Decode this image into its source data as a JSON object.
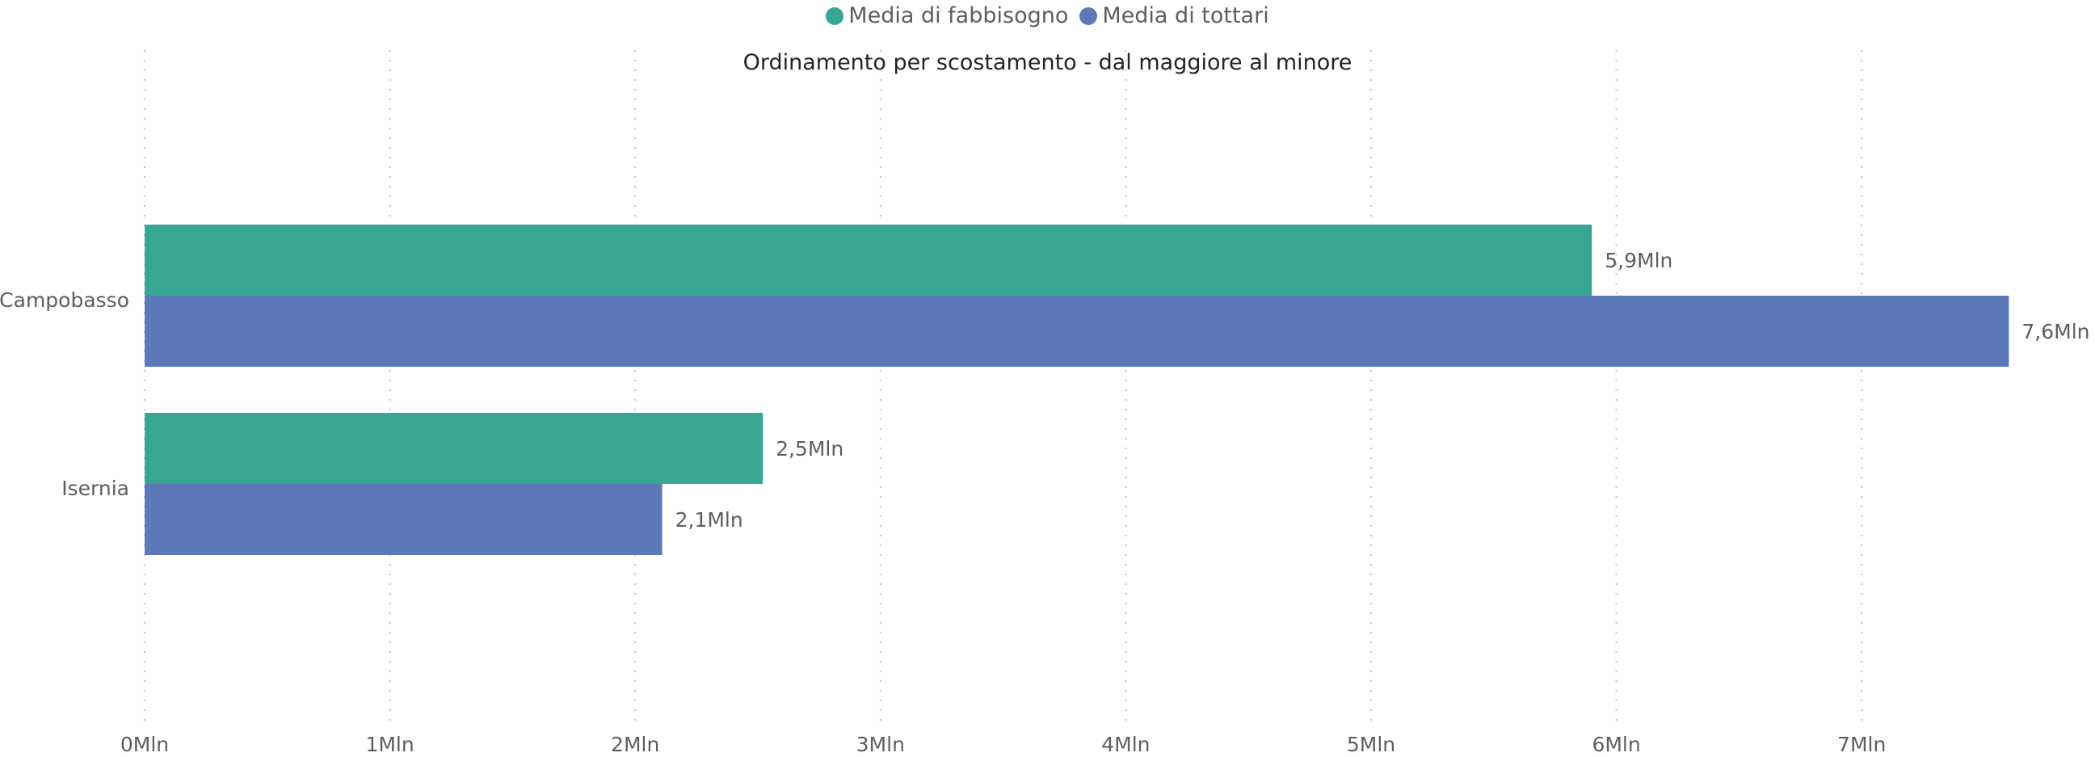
{
  "chart_data": {
    "type": "bar",
    "orientation": "horizontal",
    "subtitle": "Ordinamento per scostamento - dal maggiore al minore",
    "categories": [
      "Campobasso",
      "Isernia"
    ],
    "series": [
      {
        "name": "Media di fabbisogno",
        "color": "#37A794",
        "values": [
          5.9,
          2.52
        ],
        "labels": [
          "5,9Mln",
          "2,5Mln"
        ]
      },
      {
        "name": "Media di tottari",
        "color": "#5B78B9",
        "values": [
          7.6,
          2.11
        ],
        "labels": [
          "7,6Mln",
          "2,1Mln"
        ]
      }
    ],
    "x_ticks": [
      0,
      1,
      2,
      3,
      4,
      5,
      6,
      7
    ],
    "x_tick_labels": [
      "0Mln",
      "1Mln",
      "2Mln",
      "3Mln",
      "4Mln",
      "5Mln",
      "6Mln",
      "7Mln"
    ],
    "xlim": [
      0,
      7.6
    ],
    "grid": "vertical-dotted",
    "legend_position": "top-center"
  }
}
